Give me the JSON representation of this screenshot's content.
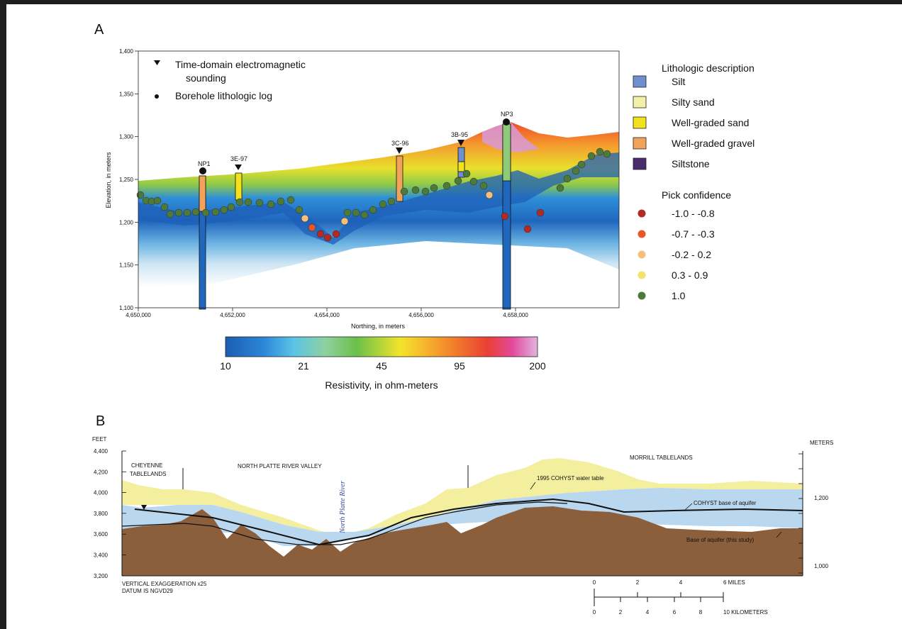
{
  "panel_a": {
    "letter": "A",
    "y_axis_label": "Elevation, in meters",
    "x_axis_label": "Northing, in meters",
    "y_ticks": [
      "1,400",
      "1,350",
      "1,300",
      "1,250",
      "1,200",
      "1,150",
      "1,100"
    ],
    "x_ticks": [
      "4,650,000",
      "4,652,000",
      "4,654,000",
      "4,656,000",
      "4,658,000"
    ],
    "legend_symbols": [
      {
        "label": "Time-domain electromagnetic",
        "label2": "sounding",
        "symbol": "triangle-down-icon"
      },
      {
        "label": "Borehole lithologic log",
        "symbol": "dot-icon"
      }
    ],
    "wells": [
      "NP1",
      "3E-97",
      "3C-96",
      "3B-95",
      "NP3"
    ],
    "lithology_title": "Lithologic description",
    "lithology": [
      {
        "label": "Silt",
        "color": "#6f8fcf"
      },
      {
        "label": "Silty sand",
        "color": "#f5efa8"
      },
      {
        "label": "Well-graded sand",
        "color": "#f3e11c"
      },
      {
        "label": "Well-graded gravel",
        "color": "#f2a35a"
      },
      {
        "label": "Siltstone",
        "color": "#4a2b6e"
      }
    ],
    "pick_title": "Pick confidence",
    "picks": [
      {
        "label": "-1.0 - -0.8",
        "color": "#b22a22"
      },
      {
        "label": "-0.7 - -0.3",
        "color": "#e8562a"
      },
      {
        "label": "-0.2 - 0.2",
        "color": "#f5c07a"
      },
      {
        "label": "0.3 - 0.9",
        "color": "#f3e36a"
      },
      {
        "label": "1.0",
        "color": "#4d7a3a"
      }
    ],
    "colorbar_ticks": [
      "10",
      "21",
      "45",
      "95",
      "200"
    ],
    "colorbar_label": "Resistivity, in ohm-meters"
  },
  "panel_b": {
    "letter": "B",
    "left_unit": "FEET",
    "right_unit": "METERS",
    "left_ticks": [
      "4,400",
      "4,200",
      "4,000",
      "3,800",
      "3,600",
      "3,400",
      "3,200"
    ],
    "right_ticks": [
      "1,200",
      "1,000"
    ],
    "region_cheyenne_1": "CHEYENNE",
    "region_cheyenne_2": "TABLELANDS",
    "region_valley": "NORTH PLATTE RIVER VALLEY",
    "region_morrill": "MORRILL TABLELANDS",
    "river_label": "North Platte River",
    "water_table_label": "1995 COHYST water table",
    "cohyst_base_label": "COHYST base of aquifer",
    "base_label": "Base of aquifer (this study)",
    "vertical_exag": "VERTICAL EXAGGERATION x25",
    "datum": "DATUM IS NGVD29",
    "scale_miles": [
      "0",
      "2",
      "4",
      "6 MILES"
    ],
    "scale_km": [
      "0",
      "2",
      "4",
      "6",
      "8",
      "10 KILOMETERS"
    ]
  }
}
